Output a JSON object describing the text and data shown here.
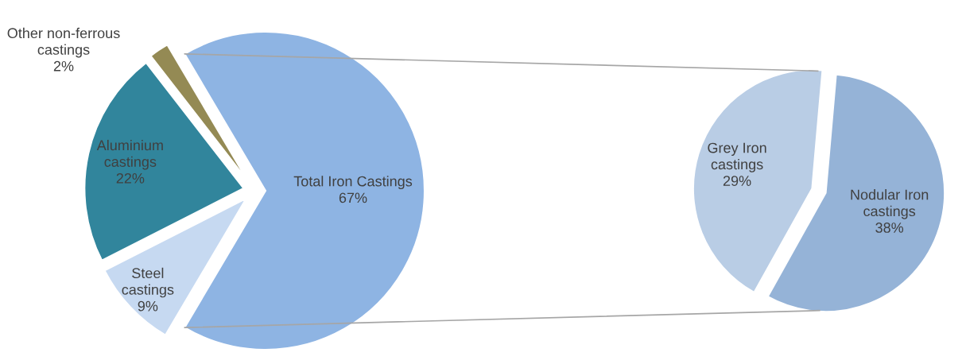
{
  "chart_data": [
    {
      "type": "pie",
      "categories": [
        "Total Iron Castings",
        "Other non-ferrous\ncastings",
        "Aluminium\ncastings",
        "Steel\ncastings"
      ],
      "values": [
        67,
        2,
        22,
        9
      ],
      "value_labels": [
        "67%",
        "2%",
        "22%",
        "9%"
      ],
      "colors": [
        "#8eb4e3",
        "#948a54",
        "#31859c",
        "#c6d9f1"
      ]
    },
    {
      "type": "pie",
      "categories": [
        "Grey Iron\ncastings",
        "Nodular Iron\ncastings"
      ],
      "values": [
        29,
        38
      ],
      "value_labels": [
        "29%",
        "38%"
      ],
      "colors": [
        "#b9cde5",
        "#95b3d7"
      ]
    }
  ]
}
